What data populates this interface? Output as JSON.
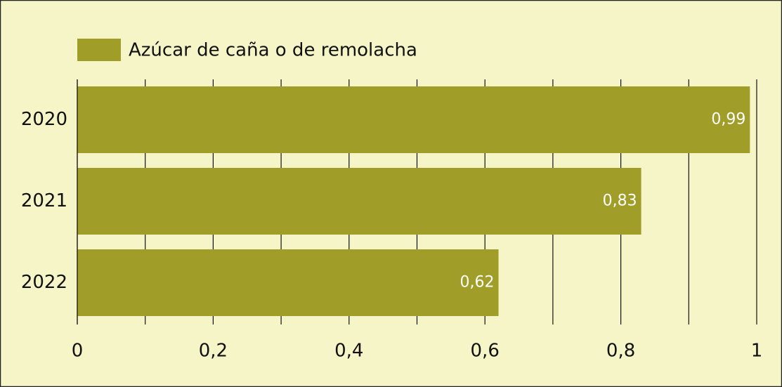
{
  "chart_data": {
    "type": "barh",
    "categories": [
      "2020",
      "2021",
      "2022"
    ],
    "series": [
      {
        "name": "Azúcar de caña o de remolacha",
        "color": "#a09e28",
        "values": [
          0.99,
          0.83,
          0.62
        ],
        "value_labels": [
          "0,99",
          "0,83",
          "0,62"
        ]
      }
    ],
    "xlim": [
      0,
      1
    ],
    "xticks": [
      0,
      {
        "value": 0.2,
        "label": "0,2"
      },
      {
        "value": 0.4,
        "label": "0,4"
      },
      {
        "value": 0.6,
        "label": "0,6"
      },
      {
        "value": 0.8,
        "label": "0,8"
      },
      1
    ],
    "minor_xticks": [
      0.1,
      0.3,
      0.5,
      0.7,
      0.9
    ],
    "grid": true,
    "legend": "top-left"
  }
}
